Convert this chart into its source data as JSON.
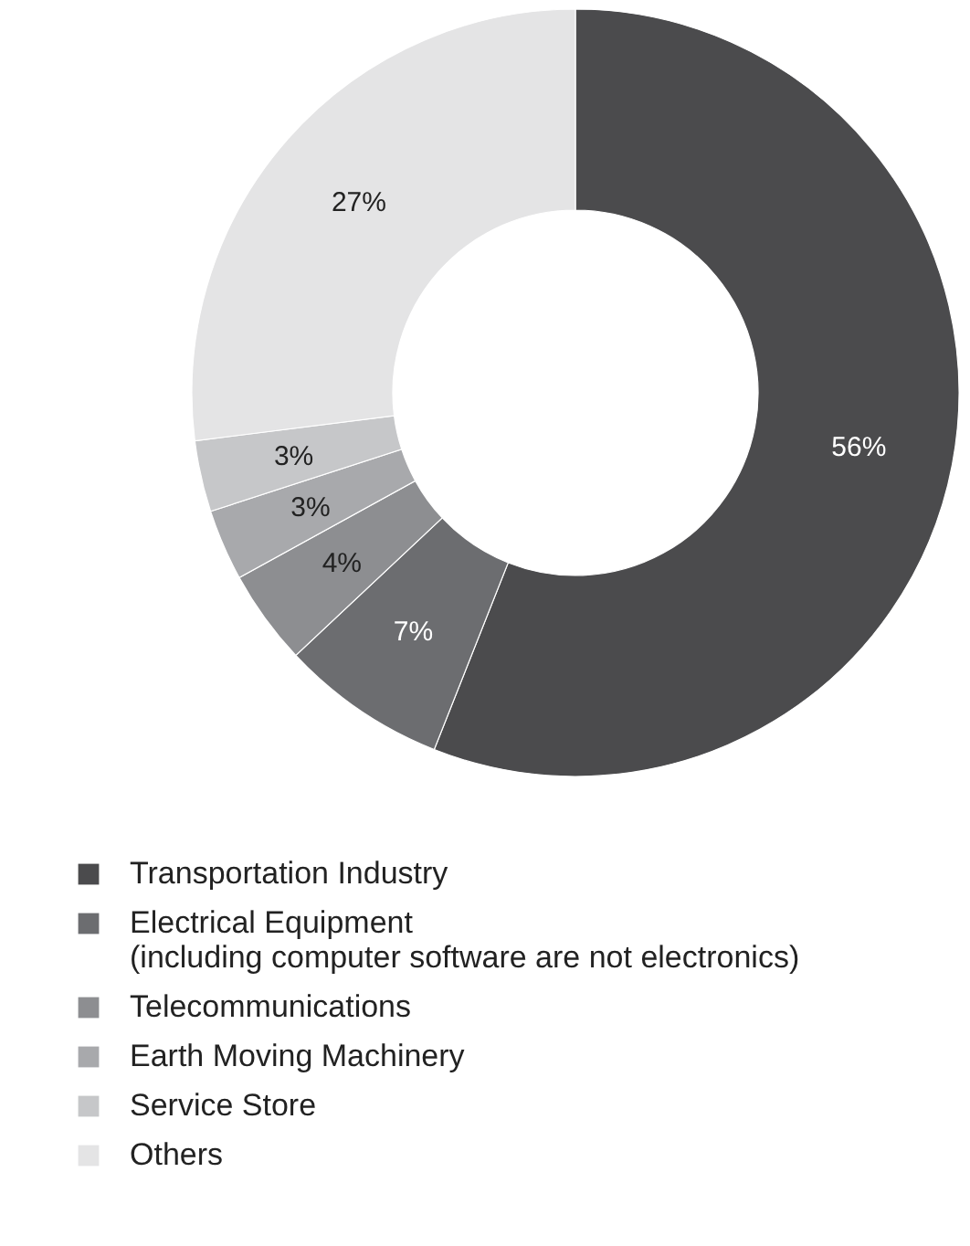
{
  "chart_data": {
    "type": "donut",
    "categories": [
      "Transportation Industry",
      "Electrical Equipment (including computer software are not electronics)",
      "Telecommunications",
      "Earth Moving Machinery",
      "Service Store",
      "Others"
    ],
    "values": [
      56,
      7,
      4,
      3,
      3,
      27
    ],
    "colors": [
      "#4b4b4d",
      "#6c6d70",
      "#8d8e91",
      "#a8a9ac",
      "#c6c7c9",
      "#e4e4e5"
    ],
    "value_labels": [
      "56%",
      "7%",
      "4%",
      "3%",
      "3%",
      "27%"
    ],
    "legend": "bottom"
  }
}
